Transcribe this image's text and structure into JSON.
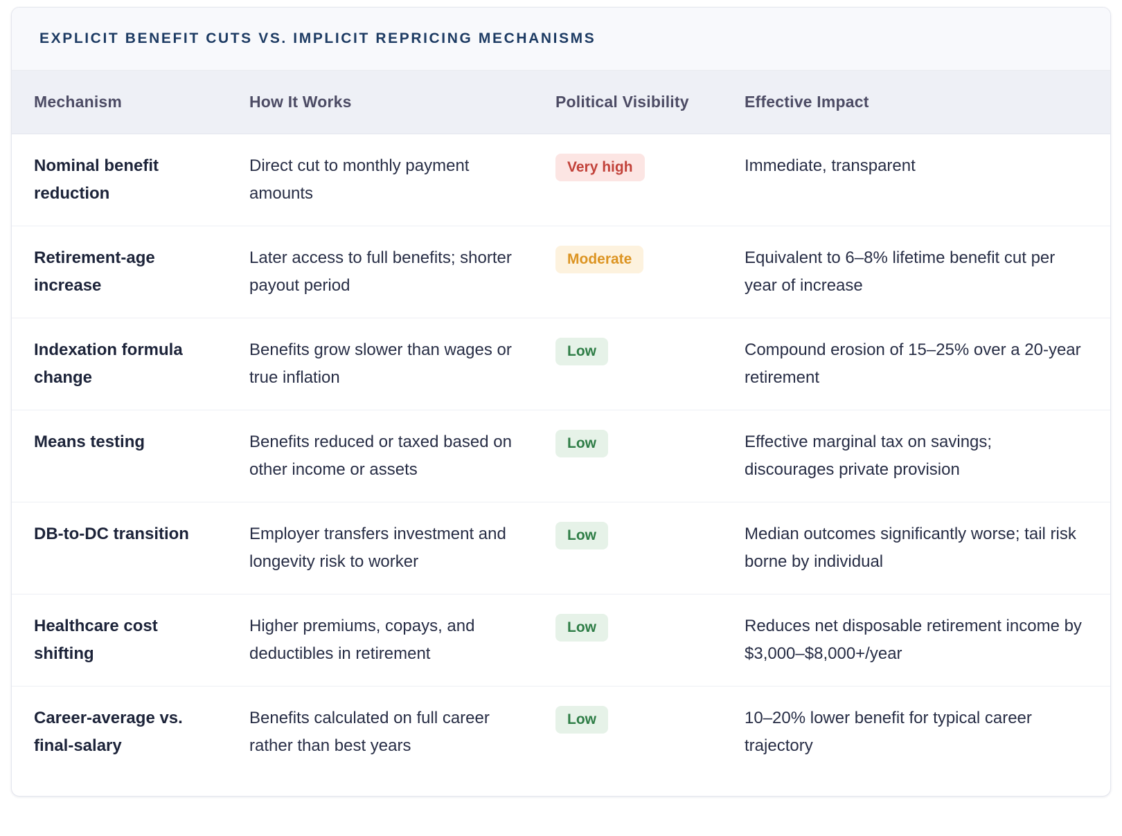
{
  "table": {
    "title": "EXPLICIT BENEFIT CUTS VS. IMPLICIT REPRICING MECHANISMS",
    "columns": [
      "Mechanism",
      "How It Works",
      "Political Visibility",
      "Effective Impact"
    ],
    "rows": [
      {
        "mechanism": "Nominal benefit reduction",
        "how_it_works": "Direct cut to monthly payment amounts",
        "visibility": "Very high",
        "visibility_level": "very-high",
        "impact": "Immediate, transparent"
      },
      {
        "mechanism": "Retirement-age increase",
        "how_it_works": "Later access to full benefits; shorter payout period",
        "visibility": "Moderate",
        "visibility_level": "moderate",
        "impact": "Equivalent to 6–8% lifetime benefit cut per year of increase"
      },
      {
        "mechanism": "Indexation formula change",
        "how_it_works": "Benefits grow slower than wages or true inflation",
        "visibility": "Low",
        "visibility_level": "low",
        "impact": "Compound erosion of 15–25% over a 20-year retirement"
      },
      {
        "mechanism": "Means testing",
        "how_it_works": "Benefits reduced or taxed based on other income or assets",
        "visibility": "Low",
        "visibility_level": "low",
        "impact": "Effective marginal tax on savings; discourages private provision"
      },
      {
        "mechanism": "DB-to-DC transition",
        "how_it_works": "Employer transfers investment and longevity risk to worker",
        "visibility": "Low",
        "visibility_level": "low",
        "impact": "Median outcomes significantly worse; tail risk borne by individual"
      },
      {
        "mechanism": "Healthcare cost shifting",
        "how_it_works": "Higher premiums, copays, and deductibles in retirement",
        "visibility": "Low",
        "visibility_level": "low",
        "impact": "Reduces net disposable retirement income by $3,000–$8,000+/year"
      },
      {
        "mechanism": "Career-average vs. final-salary",
        "how_it_works": "Benefits calculated on full career rather than best years",
        "visibility": "Low",
        "visibility_level": "low",
        "impact": "10–20% lower benefit for typical career trajectory"
      }
    ]
  },
  "colors": {
    "title_text": "#1d3b63",
    "header_row_bg": "#eef0f6",
    "header_text": "#4c4b64",
    "body_text": "#272d45",
    "badge_very_high_bg": "#fce5e3",
    "badge_very_high_text": "#c2423a",
    "badge_moderate_bg": "#fdf2de",
    "badge_moderate_text": "#dc9422",
    "badge_low_bg": "#e6f2e8",
    "badge_low_text": "#2e7d46"
  }
}
